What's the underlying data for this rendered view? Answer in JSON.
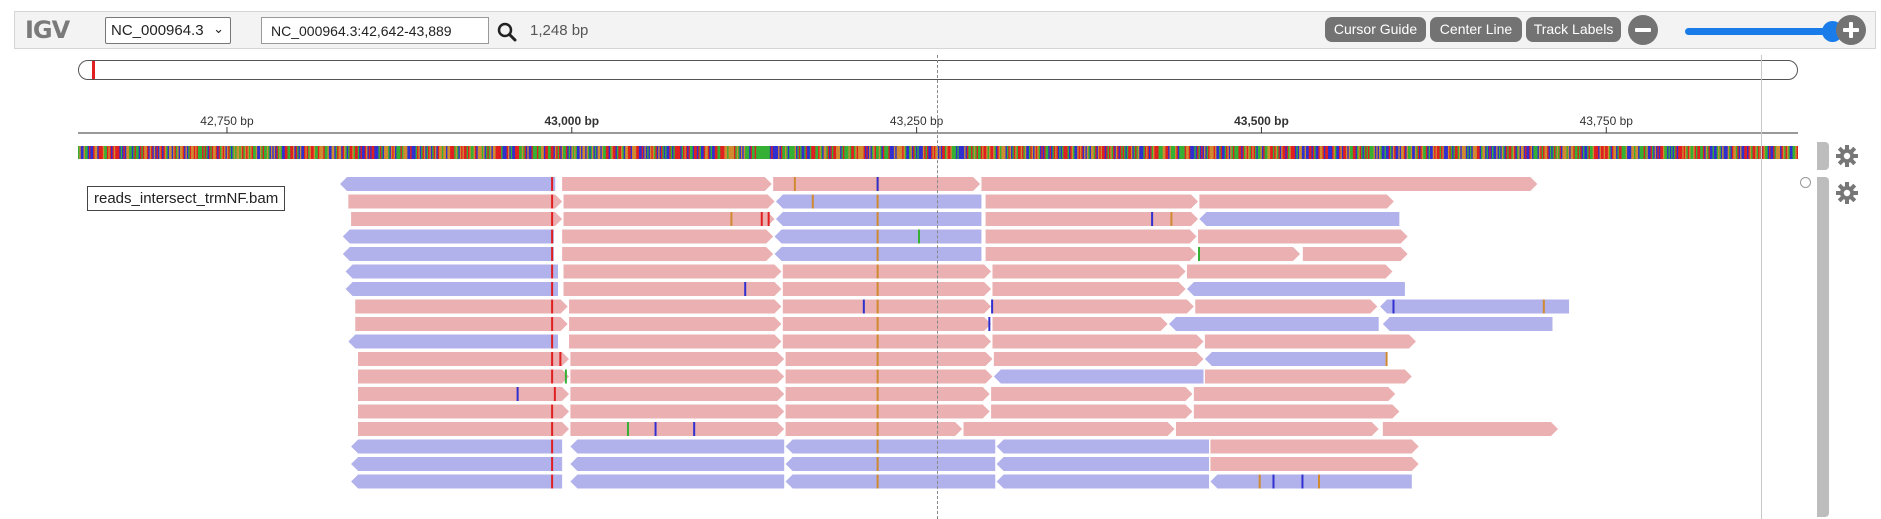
{
  "navbar": {
    "logo": "IGV",
    "genome": "NC_000964.3",
    "locus": "NC_000964.3:42,642-43,889",
    "bp_count": "1,248 bp",
    "buttons": {
      "cursor_guide": "Cursor Guide",
      "center_line": "Center Line",
      "track_labels": "Track Labels"
    },
    "zoom_level": 0.92
  },
  "ruler": {
    "range": [
      42642,
      43889
    ],
    "ticks": [
      {
        "pos": 42750,
        "label": "42,750 bp",
        "bold": false
      },
      {
        "pos": 43000,
        "label": "43,000 bp",
        "bold": true
      },
      {
        "pos": 43250,
        "label": "43,250 bp",
        "bold": false
      },
      {
        "pos": 43500,
        "label": "43,500 bp",
        "bold": true
      },
      {
        "pos": 43750,
        "label": "43,750 bp",
        "bold": false
      }
    ]
  },
  "track": {
    "name": "reads_intersect_trmNF.bam"
  },
  "colors": {
    "forward": "#ebb0b1",
    "reverse": "#b1b1ec",
    "mismatch_A": "#35b035",
    "mismatch_C": "#3030d0",
    "mismatch_G": "#d08a30",
    "mismatch_T": "#e02020",
    "seq": [
      "#35b035",
      "#3030d0",
      "#d08a30",
      "#e02020"
    ]
  },
  "alignment_rows": [
    [
      [
        42832,
        42988,
        "-"
      ],
      [
        42993,
        43145,
        "+"
      ],
      [
        43146,
        43296,
        "+"
      ],
      [
        43297,
        43700,
        "+"
      ]
    ],
    [
      [
        42838,
        42993,
        "+"
      ],
      [
        42994,
        43147,
        "+"
      ],
      [
        43148,
        43297,
        "-"
      ],
      [
        43300,
        43454,
        "+"
      ],
      [
        43455,
        43596,
        "+"
      ]
    ],
    [
      [
        42840,
        42993,
        "+"
      ],
      [
        42994,
        43147,
        "+"
      ],
      [
        43148,
        43297,
        "-"
      ],
      [
        43300,
        43454,
        "+"
      ],
      [
        43455,
        43600,
        "-"
      ]
    ],
    [
      [
        42834,
        42987,
        "-"
      ],
      [
        42993,
        43146,
        "+"
      ],
      [
        43147,
        43297,
        "-"
      ],
      [
        43300,
        43453,
        "+"
      ],
      [
        43454,
        43606,
        "+"
      ]
    ],
    [
      [
        42834,
        42987,
        "-"
      ],
      [
        42993,
        43146,
        "+"
      ],
      [
        43147,
        43297,
        "-"
      ],
      [
        43300,
        43453,
        "+"
      ],
      [
        43454,
        43528,
        "+"
      ],
      [
        43530,
        43606,
        "+"
      ]
    ],
    [
      [
        42836,
        42990,
        "-"
      ],
      [
        42994,
        43152,
        "+"
      ],
      [
        43153,
        43304,
        "+"
      ],
      [
        43305,
        43445,
        "+"
      ],
      [
        43446,
        43595,
        "+"
      ]
    ],
    [
      [
        42836,
        42990,
        "-"
      ],
      [
        42994,
        43152,
        "+"
      ],
      [
        43153,
        43304,
        "+"
      ],
      [
        43305,
        43445,
        "+"
      ],
      [
        43446,
        43604,
        "-"
      ]
    ],
    [
      [
        42843,
        42997,
        "+"
      ],
      [
        42998,
        43152,
        "+"
      ],
      [
        43153,
        43304,
        "+"
      ],
      [
        43305,
        43451,
        "+"
      ],
      [
        43452,
        43584,
        "+"
      ],
      [
        43586,
        43723,
        "-"
      ]
    ],
    [
      [
        42843,
        42997,
        "+"
      ],
      [
        42998,
        43152,
        "+"
      ],
      [
        43153,
        43304,
        "+"
      ],
      [
        43305,
        43432,
        "+"
      ],
      [
        43433,
        43585,
        "-"
      ],
      [
        43588,
        43711,
        "-"
      ]
    ],
    [
      [
        42838,
        42990,
        "-"
      ],
      [
        42998,
        43152,
        "+"
      ],
      [
        43153,
        43304,
        "+"
      ],
      [
        43305,
        43458,
        "+"
      ],
      [
        43459,
        43612,
        "+"
      ]
    ],
    [
      [
        42845,
        42998,
        "+"
      ],
      [
        42999,
        43154,
        "+"
      ],
      [
        43155,
        43305,
        "+"
      ],
      [
        43306,
        43458,
        "+"
      ],
      [
        43459,
        43590,
        "-"
      ]
    ],
    [
      [
        42845,
        42998,
        "+"
      ],
      [
        42999,
        43154,
        "+"
      ],
      [
        43155,
        43305,
        "+"
      ],
      [
        43306,
        43458,
        "-"
      ],
      [
        43459,
        43609,
        "+"
      ]
    ],
    [
      [
        42845,
        42998,
        "+"
      ],
      [
        42999,
        43154,
        "+"
      ],
      [
        43155,
        43303,
        "+"
      ],
      [
        43304,
        43450,
        "+"
      ],
      [
        43451,
        43597,
        "+"
      ]
    ],
    [
      [
        42845,
        42998,
        "+"
      ],
      [
        42999,
        43154,
        "+"
      ],
      [
        43155,
        43303,
        "+"
      ],
      [
        43304,
        43450,
        "+"
      ],
      [
        43451,
        43600,
        "+"
      ]
    ],
    [
      [
        42845,
        42998,
        "+"
      ],
      [
        42999,
        43154,
        "+"
      ],
      [
        43155,
        43283,
        "+"
      ],
      [
        43284,
        43437,
        "+"
      ],
      [
        43438,
        43585,
        "+"
      ],
      [
        43588,
        43715,
        "+"
      ]
    ],
    [
      [
        42840,
        42993,
        "-"
      ],
      [
        42999,
        43154,
        "-"
      ],
      [
        43155,
        43307,
        "-"
      ],
      [
        43308,
        43462,
        "-"
      ],
      [
        43463,
        43614,
        "+"
      ]
    ],
    [
      [
        42840,
        42993,
        "-"
      ],
      [
        42999,
        43154,
        "-"
      ],
      [
        43155,
        43307,
        "-"
      ],
      [
        43308,
        43462,
        "-"
      ],
      [
        43463,
        43614,
        "+"
      ]
    ],
    [
      [
        42840,
        42993,
        "-"
      ],
      [
        42999,
        43154,
        "-"
      ],
      [
        43155,
        43307,
        "-"
      ],
      [
        43308,
        43462,
        "-"
      ],
      [
        43463,
        43609,
        "-"
      ]
    ]
  ],
  "mismatches": [
    [
      [
        42985,
        "T"
      ],
      [
        43161,
        "G"
      ],
      [
        43221,
        "G"
      ],
      [
        43221,
        "C"
      ]
    ],
    [
      [
        42985,
        "T"
      ],
      [
        43174,
        "G"
      ],
      [
        43221,
        "G"
      ]
    ],
    [
      [
        42985,
        "T"
      ],
      [
        43115,
        "G"
      ],
      [
        43137,
        "T"
      ],
      [
        43142,
        "T"
      ],
      [
        43221,
        "G"
      ],
      [
        43420,
        "C"
      ],
      [
        43434,
        "G"
      ]
    ],
    [
      [
        42985,
        "T"
      ],
      [
        43221,
        "G"
      ],
      [
        43251,
        "A"
      ]
    ],
    [
      [
        42985,
        "T"
      ],
      [
        43221,
        "G"
      ],
      [
        43454,
        "A"
      ]
    ],
    [
      [
        42985,
        "T"
      ],
      [
        43221,
        "G"
      ]
    ],
    [
      [
        42985,
        "T"
      ],
      [
        43125,
        "C"
      ],
      [
        43221,
        "G"
      ]
    ],
    [
      [
        42985,
        "T"
      ],
      [
        43211,
        "C"
      ],
      [
        43221,
        "G"
      ],
      [
        43304,
        "C"
      ],
      [
        43595,
        "C"
      ],
      [
        43704,
        "G"
      ]
    ],
    [
      [
        42985,
        "T"
      ],
      [
        43221,
        "G"
      ],
      [
        43302,
        "C"
      ]
    ],
    [
      [
        42985,
        "T"
      ],
      [
        43221,
        "G"
      ]
    ],
    [
      [
        42985,
        "T"
      ],
      [
        42991,
        "T"
      ],
      [
        43221,
        "G"
      ],
      [
        43590,
        "G"
      ]
    ],
    [
      [
        42985,
        "T"
      ],
      [
        42995,
        "A"
      ],
      [
        43221,
        "G"
      ]
    ],
    [
      [
        42960,
        "C"
      ],
      [
        42987,
        "T"
      ],
      [
        43221,
        "G"
      ]
    ],
    [
      [
        42985,
        "T"
      ],
      [
        43221,
        "G"
      ]
    ],
    [
      [
        42985,
        "T"
      ],
      [
        43040,
        "A"
      ],
      [
        43060,
        "C"
      ],
      [
        43088,
        "C"
      ],
      [
        43221,
        "G"
      ]
    ],
    [
      [
        42985,
        "T"
      ],
      [
        43221,
        "G"
      ]
    ],
    [
      [
        42985,
        "T"
      ],
      [
        43221,
        "G"
      ]
    ],
    [
      [
        42985,
        "T"
      ],
      [
        43221,
        "G"
      ],
      [
        43498,
        "G"
      ],
      [
        43508,
        "C"
      ],
      [
        43529,
        "C"
      ],
      [
        43541,
        "G"
      ]
    ]
  ]
}
